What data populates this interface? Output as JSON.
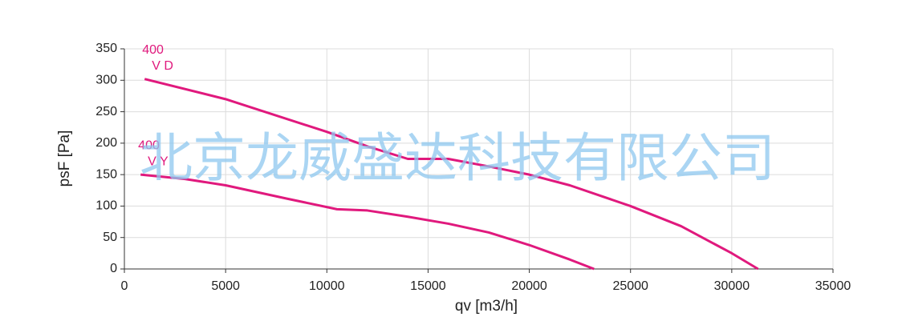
{
  "chart_data": {
    "type": "line",
    "x_label": "qv [m3/h]",
    "y_label": "psF [Pa]",
    "watermark": "北京龙威盛达科技有限公司",
    "xlim": [
      0,
      35000
    ],
    "xticks": [
      0,
      5000,
      10000,
      15000,
      20000,
      25000,
      30000,
      35000
    ],
    "ylim": [
      0,
      350
    ],
    "yticks": [
      0,
      50,
      100,
      150,
      200,
      250,
      300,
      350
    ],
    "grid": true,
    "series": [
      {
        "label_lines": [
          "400",
          "V D"
        ],
        "color": "#e0197d",
        "x": [
          1000,
          5000,
          10000,
          12000,
          14000,
          16000,
          18000,
          20000,
          22000,
          25000,
          27500,
          30000,
          31300
        ],
        "values": [
          302,
          270,
          218,
          195,
          175,
          175,
          163,
          150,
          133,
          100,
          68,
          25,
          0
        ]
      },
      {
        "label_lines": [
          "400",
          "V Y"
        ],
        "color": "#e0197d",
        "x": [
          800,
          3000,
          5000,
          8000,
          10500,
          12000,
          14000,
          16000,
          18000,
          20000,
          22000,
          23200
        ],
        "values": [
          150,
          143,
          133,
          112,
          95,
          93,
          83,
          72,
          58,
          38,
          15,
          0
        ]
      }
    ]
  }
}
